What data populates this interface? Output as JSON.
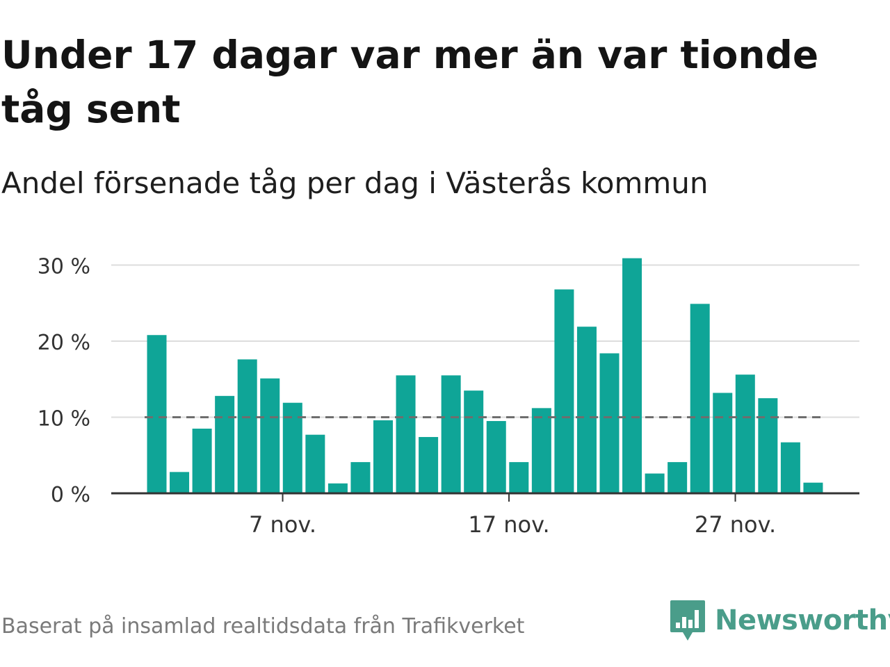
{
  "title": "Under 17 dagar var mer än var tionde tåg sent",
  "subtitle": "Andel försenade tåg per dag i Västerås kommun",
  "footer": "Baserat på insamlad realtidsdata från Trafikverket",
  "brand": {
    "name": "Newsworthy",
    "icon": "newsworthy-logo-icon",
    "color": "#4a9d8a"
  },
  "chart_data": {
    "type": "bar",
    "x_tick_labels": [
      "7 nov.",
      "17 nov.",
      "27 nov."
    ],
    "x_tick_days": [
      7,
      17,
      27
    ],
    "categories": [
      "1 nov.",
      "2 nov.",
      "3 nov.",
      "4 nov.",
      "5 nov.",
      "6 nov.",
      "7 nov.",
      "8 nov.",
      "9 nov.",
      "10 nov.",
      "11 nov.",
      "12 nov.",
      "13 nov.",
      "14 nov.",
      "15 nov.",
      "16 nov.",
      "17 nov.",
      "18 nov.",
      "19 nov.",
      "20 nov.",
      "21 nov.",
      "22 nov.",
      "23 nov.",
      "24 nov.",
      "25 nov.",
      "26 nov.",
      "27 nov.",
      "28 nov.",
      "29 nov.",
      "30 nov."
    ],
    "values": [
      20.8,
      2.8,
      8.5,
      12.8,
      17.6,
      15.1,
      11.9,
      7.7,
      1.3,
      4.1,
      9.6,
      15.5,
      7.4,
      15.5,
      13.5,
      9.5,
      4.1,
      11.2,
      26.8,
      21.9,
      18.4,
      30.9,
      2.6,
      4.1,
      24.9,
      13.2,
      15.6,
      12.5,
      6.7,
      1.4
    ],
    "y_ticks": [
      0,
      10,
      20,
      30
    ],
    "y_tick_labels": [
      "0 %",
      "10 %",
      "20 %",
      "30 %"
    ],
    "ylim": [
      0,
      31
    ],
    "reference_line": 10,
    "bar_color": "#0fa597",
    "reference_line_color": "#6e6e6e",
    "grid": true
  }
}
